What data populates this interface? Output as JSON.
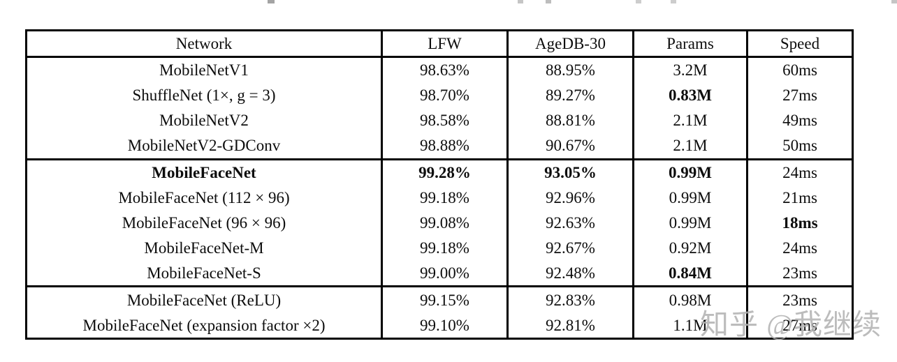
{
  "watermark": {
    "text": "知乎 @我继续",
    "color": "#b1b1b1"
  },
  "table": {
    "columns": [
      "Network",
      "LFW",
      "AgeDB-30",
      "Params",
      "Speed"
    ],
    "sections": [
      {
        "rows": [
          {
            "cells": [
              "MobileNetV1",
              "98.63%",
              "88.95%",
              "3.2M",
              "60ms"
            ],
            "bold": [
              0,
              0,
              0,
              0,
              0
            ]
          },
          {
            "cells": [
              "ShuffleNet (1×, g = 3)",
              "98.70%",
              "89.27%",
              "0.83M",
              "27ms"
            ],
            "bold": [
              0,
              0,
              0,
              1,
              0
            ]
          },
          {
            "cells": [
              "MobileNetV2",
              "98.58%",
              "88.81%",
              "2.1M",
              "49ms"
            ],
            "bold": [
              0,
              0,
              0,
              0,
              0
            ]
          },
          {
            "cells": [
              "MobileNetV2-GDConv",
              "98.88%",
              "90.67%",
              "2.1M",
              "50ms"
            ],
            "bold": [
              0,
              0,
              0,
              0,
              0
            ]
          }
        ]
      },
      {
        "rows": [
          {
            "cells": [
              "MobileFaceNet",
              "99.28%",
              "93.05%",
              "0.99M",
              "24ms"
            ],
            "bold": [
              1,
              1,
              1,
              1,
              0
            ]
          },
          {
            "cells": [
              "MobileFaceNet (112 × 96)",
              "99.18%",
              "92.96%",
              "0.99M",
              "21ms"
            ],
            "bold": [
              0,
              0,
              0,
              0,
              0
            ]
          },
          {
            "cells": [
              "MobileFaceNet (96 × 96)",
              "99.08%",
              "92.63%",
              "0.99M",
              "18ms"
            ],
            "bold": [
              0,
              0,
              0,
              0,
              1
            ]
          },
          {
            "cells": [
              "MobileFaceNet-M",
              "99.18%",
              "92.67%",
              "0.92M",
              "24ms"
            ],
            "bold": [
              0,
              0,
              0,
              0,
              0
            ]
          },
          {
            "cells": [
              "MobileFaceNet-S",
              "99.00%",
              "92.48%",
              "0.84M",
              "23ms"
            ],
            "bold": [
              0,
              0,
              0,
              1,
              0
            ]
          }
        ]
      },
      {
        "rows": [
          {
            "cells": [
              "MobileFaceNet (ReLU)",
              "99.15%",
              "92.83%",
              "0.98M",
              "23ms"
            ],
            "bold": [
              0,
              0,
              0,
              0,
              0
            ]
          },
          {
            "cells": [
              "MobileFaceNet (expansion factor ×2)",
              "99.10%",
              "92.81%",
              "1.1M",
              "27ms"
            ],
            "bold": [
              0,
              0,
              0,
              0,
              0
            ]
          }
        ]
      }
    ]
  }
}
